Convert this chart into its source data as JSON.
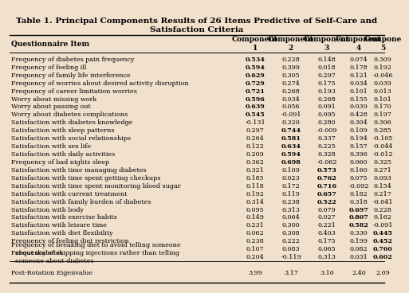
{
  "title_line1": "Table 1. Principal Components Results of 26 Items Predictive of Self-Care and",
  "title_line2": "Satisfaction Criteria",
  "col_headers": [
    "Questionnaire Item",
    "Component\n1",
    "Component\n2",
    "Component\n3",
    "Component\n4",
    "Compone\n5"
  ],
  "rows": [
    [
      "Frequency of diabetes pain frequency",
      "0.534",
      "0.228",
      "0.148",
      "0.074",
      "0.309"
    ],
    [
      "Frequency of feeling ill",
      "0.594",
      "0.399",
      "0.018",
      "0.178",
      "0.192"
    ],
    [
      "Frequency of family life interference",
      "0.629",
      "0.305",
      "0.297",
      "0.121",
      "-0.046"
    ],
    [
      "Frequency of worries about desired activity disruption",
      "0.729",
      "0.274",
      "0.175",
      "0.034",
      "0.039"
    ],
    [
      "Frequency of career limitation worries",
      "0.721",
      "0.268",
      "0.193",
      "0.101",
      "0.013"
    ],
    [
      "Worry about missing work",
      "0.596",
      "0.034",
      "0.268",
      "0.155",
      "0.101"
    ],
    [
      "Worry about passing out",
      "0.639",
      "0.056",
      "0.091",
      "0.039",
      "0.170"
    ],
    [
      "Worry about diabetes complications",
      "0.545",
      "-0.091",
      "0.095",
      "0.428",
      "0.197"
    ],
    [
      "Satisfaction with diabetes knowledge",
      "-0.131",
      "0.320",
      "0.280",
      "0.304",
      "0.306"
    ],
    [
      "Satisfaction with sleep patterns",
      "0.297",
      "0.744",
      "-0.009",
      "0.109",
      "0.285"
    ],
    [
      "Satisfaction with social relationships",
      "0.264",
      "0.581",
      "0.337",
      "0.194",
      "-0.105"
    ],
    [
      "Satisfaction with sex life",
      "0.122",
      "0.634",
      "0.225",
      "0.157",
      "-0.044"
    ],
    [
      "Satisfaction with daily activities",
      "0.209",
      "0.594",
      "0.328",
      "0.396",
      "-0.012"
    ],
    [
      "Frequency of bad nights sleep",
      "0.362",
      "0.698",
      "-0.062",
      "0.060",
      "0.325"
    ],
    [
      "Satisfaction with time managing diabetes",
      "0.321",
      "0.109",
      "0.573",
      "0.160",
      "0.271"
    ],
    [
      "Satisfaction with time spent getting checkups",
      "0.185",
      "0.023",
      "0.762",
      "0.075",
      "0.093"
    ],
    [
      "Satisfaction with time spent monitoring blood sugar",
      "0.118",
      "0.172",
      "0.716",
      "-0.092",
      "0.154"
    ],
    [
      "Satisfaction with current treatment",
      "0.192",
      "0.119",
      "0.657",
      "0.182",
      "0.217"
    ],
    [
      "Satisfaction with family burden of diabetes",
      "0.314",
      "0.238",
      "0.522",
      "0.318",
      "-0.041"
    ],
    [
      "Satisfaction with body",
      "0.095",
      "0.313",
      "0.079",
      "0.697",
      "0.228"
    ],
    [
      "Satisfaction with exercise habits",
      "0.149",
      "0.064",
      "0.027",
      "0.807",
      "0.162"
    ],
    [
      "Satisfaction with leisure time",
      "0.231",
      "0.300",
      "0.221",
      "0.582",
      "-0.091"
    ],
    [
      "Satisfaction with diet flexibility",
      "0.062",
      "0.308",
      "0.403",
      "0.330",
      "0.445"
    ],
    [
      "Frequency of feeling diet restriction",
      "0.238",
      "0.222",
      "0.175",
      "0.199",
      "0.452"
    ],
    [
      "Frequency of breaking diet to avoid telling someone\n  about diabetes",
      "0.107",
      "0.083",
      "0.065",
      "0.082",
      "0.760"
    ],
    [
      "Frequency of skipping injections rather than telling\n  someone about diabetes",
      "0.204",
      "-0.119",
      "0.313",
      "0.031",
      "0.602"
    ]
  ],
  "bold_map": {
    "0": 1,
    "1": 1,
    "2": 1,
    "3": 1,
    "4": 1,
    "5": 1,
    "6": 1,
    "7": 1,
    "9": 2,
    "10": 2,
    "11": 2,
    "12": 2,
    "13": 2,
    "14": 3,
    "15": 3,
    "16": 3,
    "17": 3,
    "18": 3,
    "19": 4,
    "20": 4,
    "21": 4,
    "22": 5,
    "23": 5,
    "24": 5,
    "25": 5
  },
  "eigenvalue_row": [
    "Post-Rotation Eigenvalue",
    "3.99",
    "3.17",
    "3.10",
    "2.40",
    "2.09"
  ],
  "bg_color": "#f0e0cc",
  "title_fontsize": 7.5,
  "body_fontsize": 5.8,
  "header_fontsize": 6.5
}
